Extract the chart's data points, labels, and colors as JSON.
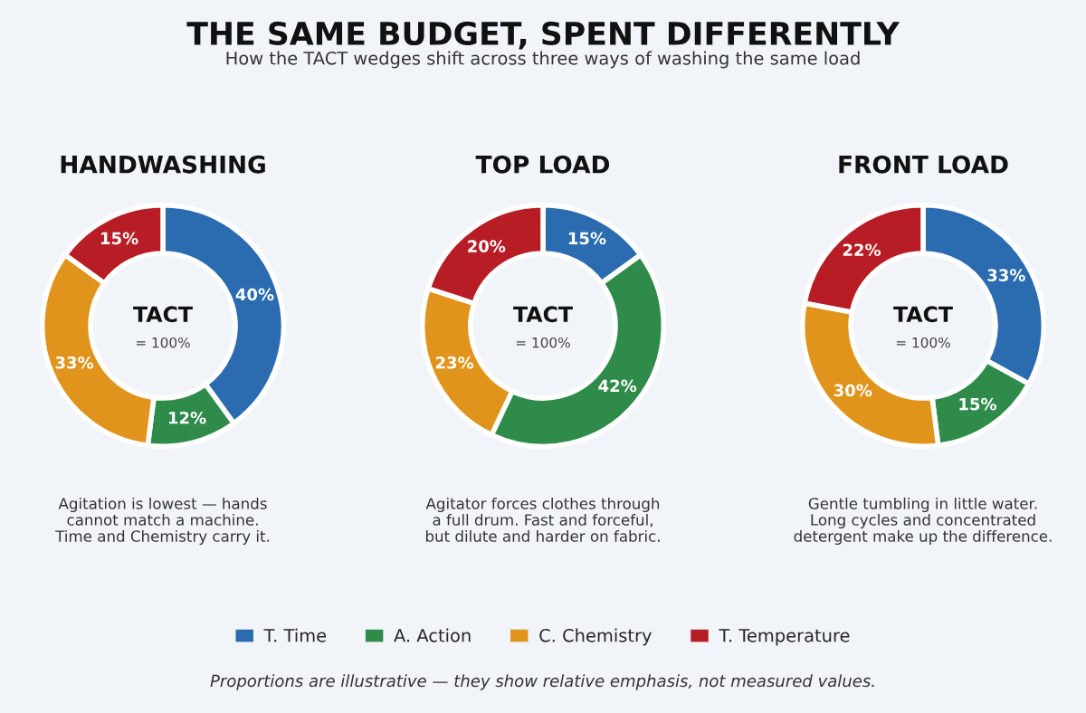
{
  "chart_data": [
    {
      "type": "donut",
      "title": "HANDWASHING",
      "categories": [
        "T. Time",
        "A. Action",
        "C. Chemistry",
        "T. Temperature"
      ],
      "values": [
        40,
        12,
        33,
        15
      ],
      "value_labels": [
        "40%",
        "12%",
        "33%",
        "15%"
      ],
      "colors": [
        "#2b6cb0",
        "#2e8b4a",
        "#e0941c",
        "#b81c24"
      ],
      "legend": "bottom",
      "annotations": [
        "TACT",
        "= 100%",
        "Agitation is lowest — hands\ncannot match a machine.\nTime and Chemistry carry it.",
        "THE SAME BUDGET, SPENT DIFFERENTLY",
        "How the TACT wedges shift across three ways of washing the same load"
      ]
    },
    {
      "type": "donut",
      "title": "TOP LOAD",
      "categories": [
        null,
        null,
        null,
        null
      ],
      "values": [
        15,
        42,
        23,
        20
      ],
      "value_labels": [
        "15%",
        "42%",
        "23%",
        "20%"
      ],
      "colors": [
        "#2b6cb0",
        "#2e8b4a",
        "#e0941c",
        "#b81c24"
      ],
      "annotations": [
        "TACT",
        "= 100%",
        "Agitator forces clothes through\na full drum. Fast and forceful,\nbut dilute and harder on fabric."
      ]
    },
    {
      "type": "donut",
      "title": "FRONT LOAD",
      "categories": [
        null,
        null,
        null,
        null
      ],
      "values": [
        33,
        15,
        30,
        22
      ],
      "value_labels": [
        "33%",
        "15%",
        "30%",
        "22%"
      ],
      "colors": [
        "#2b6cb0",
        "#2e8b4a",
        "#e0941c",
        "#b81c24"
      ],
      "annotations": [
        "TACT",
        "= 100%",
        "Gentle tumbling in little water.\nLong cycles and concentrated\ndetergent make up the difference.",
        "Proportions are illustrative — they show relative emphasis, not measured values."
      ]
    }
  ]
}
